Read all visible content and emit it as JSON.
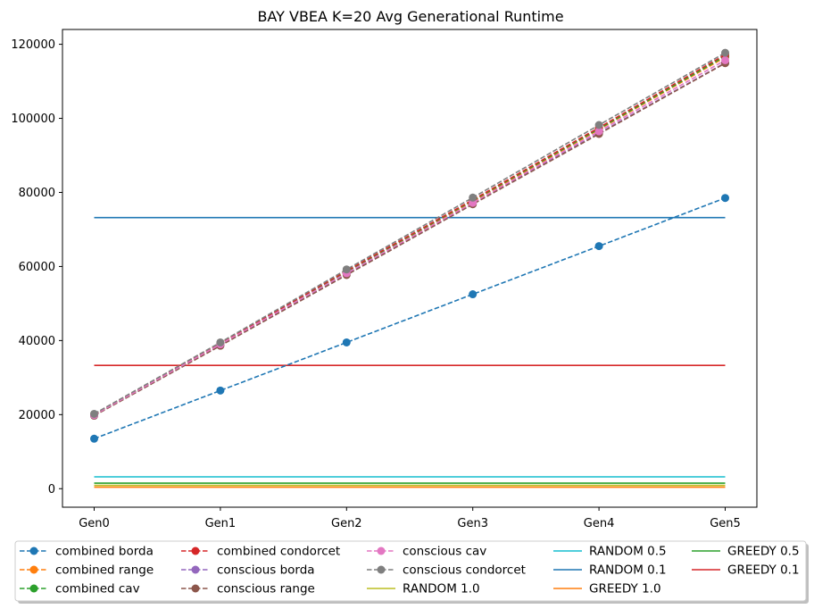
{
  "chart_data": {
    "type": "line",
    "title": "BAY VBEA K=20 Avg Generational Runtime",
    "xlabel": "",
    "ylabel": "",
    "categories": [
      "Gen0",
      "Gen1",
      "Gen2",
      "Gen3",
      "Gen4",
      "Gen5"
    ],
    "ylim": [
      -5000,
      124000
    ],
    "yticks": [
      0,
      20000,
      40000,
      60000,
      80000,
      100000,
      120000
    ],
    "grid": false,
    "legend_position": "bottom-center",
    "series": [
      {
        "name": "combined borda",
        "style": "dashed",
        "marker": true,
        "color": "#1f77b4",
        "values": [
          13500,
          26500,
          39500,
          52500,
          65500,
          78500
        ]
      },
      {
        "name": "combined range",
        "style": "dashed",
        "marker": true,
        "color": "#ff7f0e",
        "values": [
          20000,
          39000,
          58500,
          77500,
          97000,
          116500
        ]
      },
      {
        "name": "combined cav",
        "style": "dashed",
        "marker": true,
        "color": "#2ca02c",
        "values": [
          20000,
          39200,
          58600,
          77800,
          97200,
          116800
        ]
      },
      {
        "name": "combined condorcet",
        "style": "dashed",
        "marker": true,
        "color": "#d62728",
        "values": [
          20000,
          39300,
          58800,
          78000,
          97500,
          117200
        ]
      },
      {
        "name": "conscious borda",
        "style": "dashed",
        "marker": true,
        "color": "#9467bd",
        "values": [
          19800,
          38800,
          58000,
          77000,
          96000,
          115000
        ]
      },
      {
        "name": "conscious range",
        "style": "dashed",
        "marker": true,
        "color": "#8c564b",
        "values": [
          19700,
          38600,
          57700,
          76800,
          95800,
          114900
        ]
      },
      {
        "name": "conscious cav",
        "style": "dashed",
        "marker": true,
        "color": "#e377c2",
        "values": [
          19900,
          39000,
          58200,
          77200,
          96500,
          115700
        ]
      },
      {
        "name": "conscious condorcet",
        "style": "dashed",
        "marker": true,
        "color": "#7f7f7f",
        "values": [
          20200,
          39500,
          59200,
          78600,
          98200,
          117700
        ]
      },
      {
        "name": "RANDOM 1.0",
        "style": "solid",
        "marker": false,
        "color": "#bcbd22",
        "values": [
          900,
          900,
          900,
          900,
          900,
          900
        ]
      },
      {
        "name": "RANDOM 0.5",
        "style": "solid",
        "marker": false,
        "color": "#17becf",
        "values": [
          3200,
          3200,
          3200,
          3200,
          3200,
          3200
        ]
      },
      {
        "name": "RANDOM 0.1",
        "style": "solid",
        "marker": false,
        "color": "#1f77b4",
        "values": [
          73200,
          73200,
          73200,
          73200,
          73200,
          73200
        ]
      },
      {
        "name": "GREEDY 1.0",
        "style": "solid",
        "marker": false,
        "color": "#ff7f0e",
        "values": [
          400,
          400,
          400,
          400,
          400,
          400
        ]
      },
      {
        "name": "GREEDY 0.5",
        "style": "solid",
        "marker": false,
        "color": "#2ca02c",
        "values": [
          1500,
          1500,
          1500,
          1500,
          1500,
          1500
        ]
      },
      {
        "name": "GREEDY 0.1",
        "style": "solid",
        "marker": false,
        "color": "#d62728",
        "values": [
          33300,
          33300,
          33300,
          33300,
          33300,
          33300
        ]
      }
    ]
  }
}
